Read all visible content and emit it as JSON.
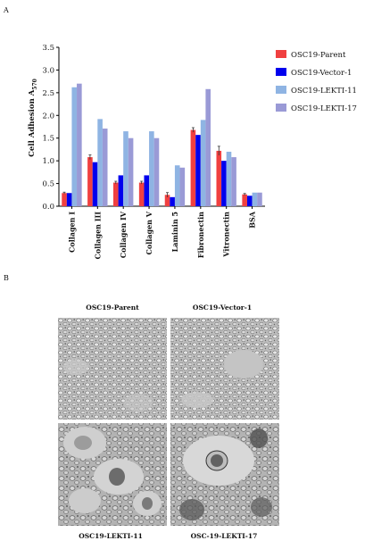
{
  "panels": {
    "a_label": "A",
    "b_label": "B"
  },
  "chart_data": {
    "type": "bar",
    "ylabel": "Cell Adhesion A",
    "ylabel_sub": "570",
    "ylim": [
      0,
      3.5
    ],
    "yticks": [
      "0.0",
      "0.5",
      "1.0",
      "1.5",
      "2.0",
      "2.5",
      "3.0",
      "3.5"
    ],
    "categories": [
      "Collagen I",
      "Collagen III",
      "Collagen IV",
      "Collagen V",
      "Laminin 5",
      "Fibronectin",
      "Vitronectin",
      "BSA"
    ],
    "series": [
      {
        "name": "OSC19-Parent",
        "color": "#f04040",
        "values": [
          0.29,
          1.08,
          0.52,
          0.52,
          0.25,
          1.68,
          1.22,
          0.26
        ],
        "errors": [
          0.02,
          0.05,
          0.03,
          0.03,
          0.05,
          0.05,
          0.1,
          0.02
        ]
      },
      {
        "name": "OSC19-Vector-1",
        "color": "#0000ee",
        "values": [
          0.29,
          0.97,
          0.68,
          0.68,
          0.2,
          1.57,
          1.0,
          0.23
        ],
        "errors": [
          0.0,
          0.0,
          0.0,
          0.0,
          0.0,
          0.0,
          0.0,
          0.0
        ]
      },
      {
        "name": "OSC19-LEKTI-11",
        "color": "#8fb4e3",
        "values": [
          2.62,
          1.92,
          1.65,
          1.65,
          0.9,
          1.9,
          1.2,
          0.3
        ],
        "errors": [
          0.0,
          0.0,
          0.0,
          0.0,
          0.0,
          0.0,
          0.0,
          0.0
        ]
      },
      {
        "name": "OSC19-LEKTI-17",
        "color": "#9a9ad6",
        "values": [
          2.7,
          1.71,
          1.5,
          1.5,
          0.85,
          2.58,
          1.08,
          0.3
        ],
        "errors": [
          0.0,
          0.0,
          0.0,
          0.0,
          0.0,
          0.0,
          0.0,
          0.0
        ]
      }
    ],
    "legend_position": "right"
  },
  "micrographs": {
    "top_left_title": "OSC19-Parent",
    "top_right_title": "OSC19-Vector-1",
    "bottom_left_title": "OSC19-LEKTI-11",
    "bottom_right_title": "OSC-19-LEKTI-17"
  }
}
